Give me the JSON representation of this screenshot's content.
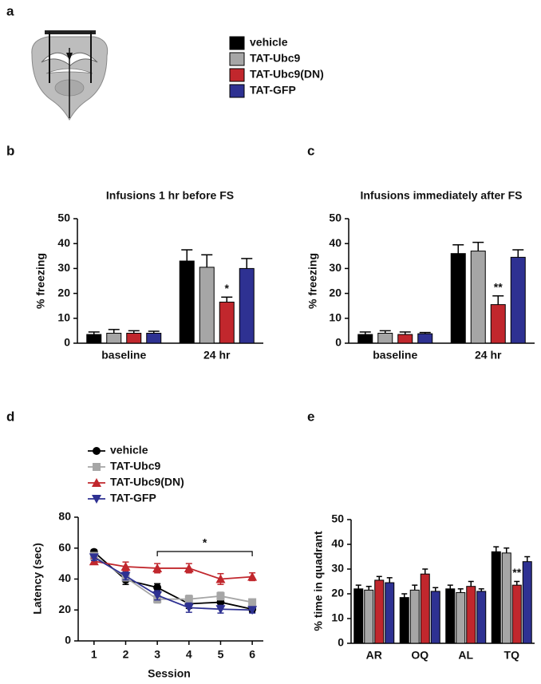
{
  "panel_a": {
    "label": "a"
  },
  "chart_data": [
    {
      "type": "bar",
      "panel_label": "b",
      "title": "Infusions 1 hr before FS",
      "ylabel": "% freezing",
      "categories": [
        "baseline",
        "24 hr"
      ],
      "series": [
        {
          "name": "vehicle",
          "color": "#000000",
          "values": [
            3.5,
            33
          ],
          "errors": [
            1,
            4.5
          ]
        },
        {
          "name": "TAT-Ubc9",
          "color": "#a6a6a6",
          "values": [
            4,
            30.5
          ],
          "errors": [
            1.5,
            5
          ]
        },
        {
          "name": "TAT-Ubc9(DN)",
          "color": "#c1272d",
          "values": [
            4,
            16.5
          ],
          "errors": [
            1,
            2
          ]
        },
        {
          "name": "TAT-GFP",
          "color": "#2e3192",
          "values": [
            4,
            30
          ],
          "errors": [
            0.8,
            4
          ]
        }
      ],
      "ylim": [
        0,
        50
      ],
      "yticks": [
        0,
        10,
        20,
        30,
        40,
        50
      ],
      "annotations": [
        {
          "text": "*",
          "category": "24 hr",
          "series": "TAT-Ubc9(DN)"
        }
      ]
    },
    {
      "type": "bar",
      "panel_label": "c",
      "title": "Infusions immediately after FS",
      "ylabel": "% freezing",
      "categories": [
        "baseline",
        "24 hr"
      ],
      "series": [
        {
          "name": "vehicle",
          "color": "#000000",
          "values": [
            3.5,
            36
          ],
          "errors": [
            1,
            3.5
          ]
        },
        {
          "name": "TAT-Ubc9",
          "color": "#a6a6a6",
          "values": [
            4,
            37
          ],
          "errors": [
            1,
            3.5
          ]
        },
        {
          "name": "TAT-Ubc9(DN)",
          "color": "#c1272d",
          "values": [
            3.5,
            15.5
          ],
          "errors": [
            1,
            3.5
          ]
        },
        {
          "name": "TAT-GFP",
          "color": "#2e3192",
          "values": [
            3.8,
            34.5
          ],
          "errors": [
            0.5,
            3
          ]
        }
      ],
      "ylim": [
        0,
        50
      ],
      "yticks": [
        0,
        10,
        20,
        30,
        40,
        50
      ],
      "annotations": [
        {
          "text": "**",
          "category": "24 hr",
          "series": "TAT-Ubc9(DN)"
        }
      ]
    },
    {
      "type": "line",
      "panel_label": "d",
      "xlabel": "Session",
      "ylabel": "Latency (sec)",
      "x": [
        1,
        2,
        3,
        4,
        5,
        6
      ],
      "series": [
        {
          "name": "vehicle",
          "color": "#000000",
          "marker": "circle",
          "values": [
            57.5,
            39.5,
            34.5,
            24,
            25,
            20.5
          ],
          "errors": [
            1.5,
            3,
            2.5,
            3,
            2.5,
            2
          ]
        },
        {
          "name": "TAT-Ubc9",
          "color": "#a6a6a6",
          "marker": "square",
          "values": [
            55,
            41,
            27,
            27,
            29,
            25
          ],
          "errors": [
            1.5,
            2,
            2.5,
            2.5,
            2.5,
            2
          ]
        },
        {
          "name": "TAT-Ubc9(DN)",
          "color": "#c1272d",
          "marker": "triangle-up",
          "values": [
            51.5,
            48,
            47,
            47,
            40,
            41.5
          ],
          "errors": [
            2,
            3,
            3,
            3,
            3.5,
            2.5
          ]
        },
        {
          "name": "TAT-GFP",
          "color": "#2e3192",
          "marker": "triangle-down",
          "values": [
            54,
            42,
            29.5,
            21.5,
            20.5,
            20
          ],
          "errors": [
            2,
            2.5,
            3,
            3,
            2.5,
            2
          ]
        }
      ],
      "xlim": [
        0.5,
        6.35
      ],
      "xticks": [
        1,
        2,
        3,
        4,
        5,
        6
      ],
      "ylim": [
        0,
        80
      ],
      "yticks": [
        0,
        20,
        40,
        60,
        80
      ],
      "annotations": [
        {
          "text": "*",
          "x_range": [
            3,
            6
          ]
        }
      ]
    },
    {
      "type": "bar",
      "panel_label": "e",
      "ylabel": "% time in quadrant",
      "categories": [
        "AR",
        "OQ",
        "AL",
        "TQ"
      ],
      "series": [
        {
          "name": "vehicle",
          "color": "#000000",
          "values": [
            22,
            18.5,
            22,
            37
          ],
          "errors": [
            1.5,
            1.5,
            1.5,
            2
          ]
        },
        {
          "name": "TAT-Ubc9",
          "color": "#a6a6a6",
          "values": [
            21.5,
            21.5,
            20.5,
            36.5
          ],
          "errors": [
            1.5,
            2,
            1.5,
            2
          ]
        },
        {
          "name": "TAT-Ubc9(DN)",
          "color": "#c1272d",
          "values": [
            25.5,
            28,
            23,
            23.5
          ],
          "errors": [
            1.5,
            2,
            2,
            1.5
          ]
        },
        {
          "name": "TAT-GFP",
          "color": "#2e3192",
          "values": [
            24.5,
            21,
            21,
            33
          ],
          "errors": [
            2,
            1.5,
            1,
            2
          ]
        }
      ],
      "ylim": [
        0,
        50
      ],
      "yticks": [
        0,
        10,
        20,
        30,
        40,
        50
      ],
      "annotations": [
        {
          "text": "**",
          "category": "TQ",
          "series": "TAT-Ubc9(DN)"
        }
      ]
    }
  ]
}
